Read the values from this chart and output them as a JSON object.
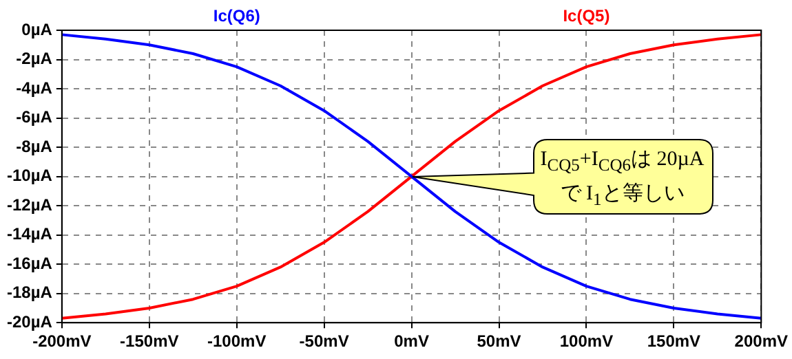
{
  "chart_data": {
    "type": "line",
    "x": [
      -200,
      -175,
      -150,
      -125,
      -100,
      -75,
      -50,
      -25,
      0,
      25,
      50,
      75,
      100,
      125,
      150,
      175,
      200
    ],
    "series": [
      {
        "name": "Ic(Q6)",
        "color": "#0000ff",
        "values": [
          -0.3,
          -0.6,
          -1.0,
          -1.6,
          -2.5,
          -3.8,
          -5.5,
          -7.6,
          -10,
          -12.4,
          -14.5,
          -16.2,
          -17.5,
          -18.4,
          -19.0,
          -19.4,
          -19.7
        ]
      },
      {
        "name": "Ic(Q5)",
        "color": "#ff0000",
        "values": [
          -19.7,
          -19.4,
          -19.0,
          -18.4,
          -17.5,
          -16.2,
          -14.5,
          -12.4,
          -10,
          -7.6,
          -5.5,
          -3.8,
          -2.5,
          -1.6,
          -1.0,
          -0.6,
          -0.3
        ]
      }
    ],
    "xlim": [
      -200,
      200
    ],
    "xticks": [
      {
        "value": -200,
        "label": "-200mV"
      },
      {
        "value": -150,
        "label": "-150mV"
      },
      {
        "value": -100,
        "label": "-100mV"
      },
      {
        "value": -50,
        "label": "-50mV"
      },
      {
        "value": 0,
        "label": "0mV"
      },
      {
        "value": 50,
        "label": "50mV"
      },
      {
        "value": 100,
        "label": "100mV"
      },
      {
        "value": 150,
        "label": "150mV"
      },
      {
        "value": 200,
        "label": "200mV"
      }
    ],
    "ylim": [
      -20,
      0
    ],
    "yticks": [
      {
        "value": -20,
        "label": "-20µA"
      },
      {
        "value": -18,
        "label": "-18µA"
      },
      {
        "value": -16,
        "label": "-16µA"
      },
      {
        "value": -14,
        "label": "-14µA"
      },
      {
        "value": -12,
        "label": "-12µA"
      },
      {
        "value": -10,
        "label": "-10µA"
      },
      {
        "value": -8,
        "label": "-8µA"
      },
      {
        "value": -6,
        "label": "-6µA"
      },
      {
        "value": -4,
        "label": "-4µA"
      },
      {
        "value": -2,
        "label": "-2µA"
      },
      {
        "value": 0,
        "label": "0µA"
      }
    ],
    "grid": true,
    "legend": "top",
    "marker": "none",
    "line_style": "solid",
    "annotations": [
      "I$_{CQ5}$+I$_{CQ6}$は 20µA で I$_{1}$と等しい"
    ]
  }
}
